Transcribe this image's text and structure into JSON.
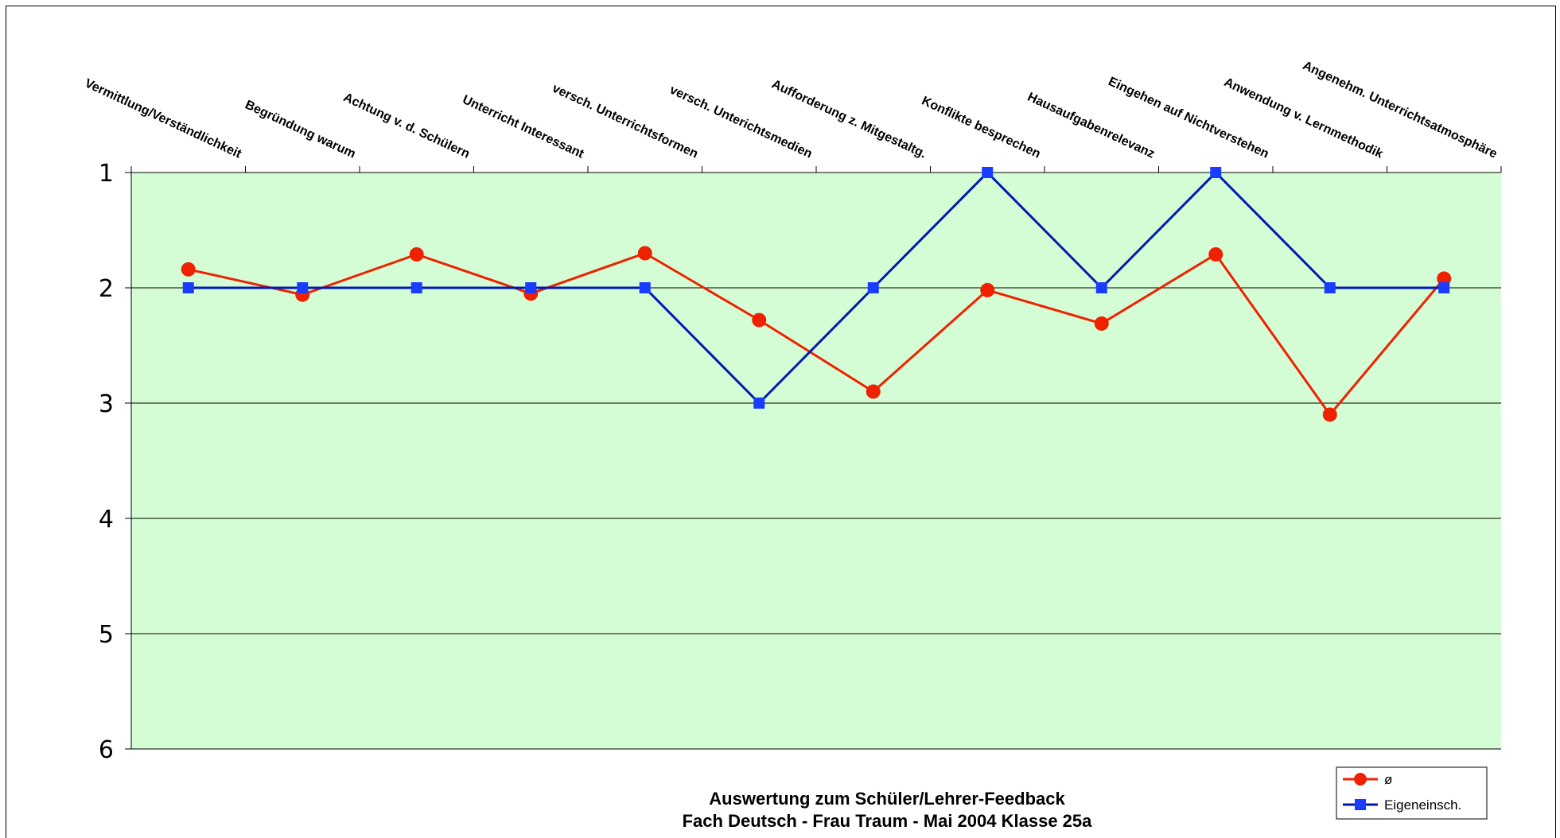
{
  "chart_data": {
    "type": "line",
    "title": "Auswertung zum  Schüler/Lehrer-Feedback",
    "subtitle": "Fach Deutsch - Frau Traum - Mai 2004 Klasse 25a",
    "categories": [
      "Vermittlung/Verständlichkeit",
      "Begründung warum",
      "Achtung v. d. Schülern",
      "Unterricht Interessant",
      "versch. Unterrichtsformen",
      "versch. Unterichtsmedien",
      "Aufforderung z. Mitgestaltg.",
      "Konflikte besprechen",
      "Hausaufgabenrelevanz",
      "Eingehen auf Nichtverstehen",
      "Anwendung v. Lernmethodik",
      "Angenehm. Unterrichtsatmosphäre"
    ],
    "y_ticks": [
      "1",
      "2",
      "3",
      "4",
      "5",
      "6"
    ],
    "ylim": [
      1,
      6
    ],
    "y_inverted": true,
    "x_axis_position": "top",
    "grid": true,
    "legend_position": "bottom-right",
    "plot_background": "#d5fdd5",
    "series": [
      {
        "name": "ø",
        "color": "#ee2200",
        "marker": "circle",
        "values": [
          1.84,
          2.06,
          1.71,
          2.05,
          1.7,
          2.28,
          2.9,
          2.02,
          2.31,
          1.71,
          3.1,
          1.92
        ]
      },
      {
        "name": "Eigeneinsch.",
        "color": "#001ab0",
        "marker": "square",
        "marker_color": "#1a3cff",
        "values": [
          2,
          2,
          2,
          2,
          2,
          3,
          2,
          1,
          2,
          1,
          2,
          2
        ]
      }
    ]
  }
}
